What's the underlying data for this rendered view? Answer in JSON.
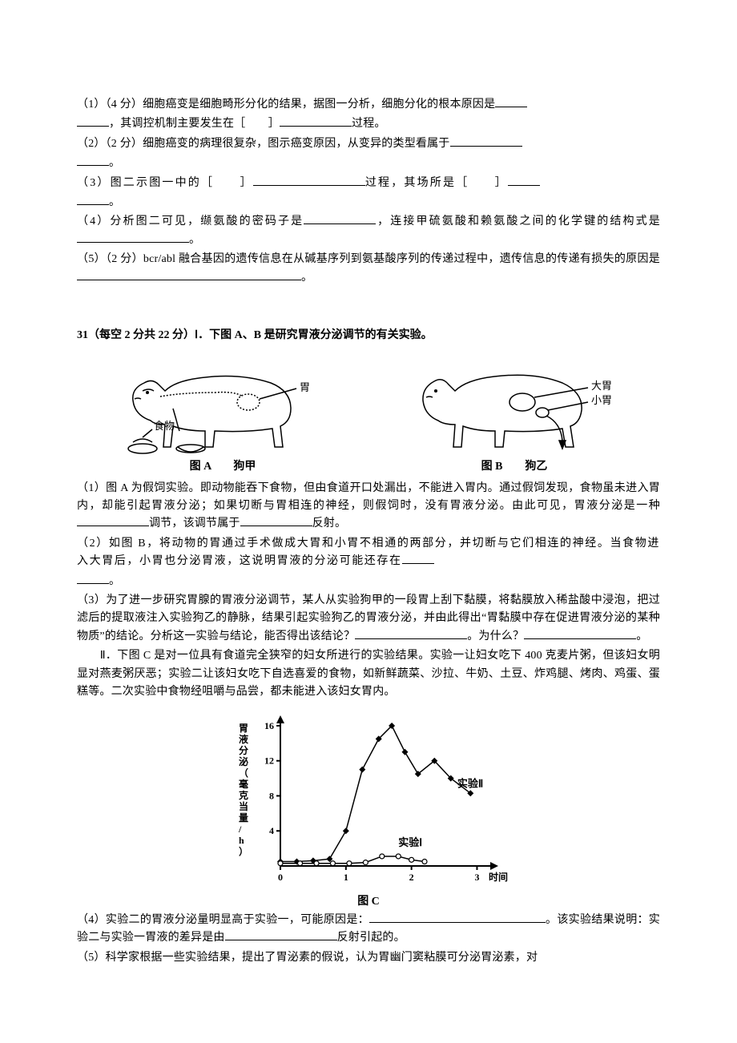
{
  "section1": {
    "q1": "（1）（4 分）细胞癌变是细胞畸形分化的结果，据图一分析，细胞分化的根本原因是",
    "q1b": "，其调控机制主要发生在［　　］",
    "q1c": "过程。",
    "q2": "（2）（2 分）细胞癌变的病理很复杂，图示癌变原因，从变异的类型看属于",
    "q2b": "。",
    "q3a": "（3）图二示图一中的［　　］",
    "q3b": "过程，其场所是［　　］",
    "q3c": "。",
    "q4a": "（4）分析图二可见，缬氨酸的密码子是",
    "q4b": "，连接甲硫氨酸和赖氨酸之间的化学键的结构式是",
    "q4c": "。",
    "q5a": "（5）（2 分）bcr/abl 融合基因的遗传信息在从碱基序列到氨基酸序列的传递过程中，遗传信息的传递有损失的原因是",
    "q5b": "。"
  },
  "q31": {
    "header": "31（每空 2 分共 22 分）Ⅰ．下图 A、B 是研究胃液分泌调节的有关实验。",
    "figA": {
      "labels": {
        "stomach": "胃",
        "food": "食物",
        "caption": "图 A　　狗甲"
      },
      "colors": {
        "line": "#000000"
      }
    },
    "figB": {
      "labels": {
        "big": "大胃",
        "small": "小胃",
        "caption": "图 B　　狗乙"
      },
      "colors": {
        "line": "#000000"
      }
    },
    "q1a": "（1）图 A 为假饲实验。即动物能吞下食物，但由食道开口处漏出，不能进入胃内。通过假饲发现，食物虽未进入胃内，却能引起胃液分泌；如果切断与胃相连的神经，则假饲时，没有胃液分泌。由此可见，胃液分泌是一种",
    "q1b": "调节，该调节属于",
    "q1c": "反射。",
    "q2a": "（2）如图 B，将动物的胃通过手术做成大胃和小胃不相通的两部分，并切断与它们相连的神经。当食物进入大胃后，小胃也分泌胃液，这说明胃液的分泌可能还存在",
    "q2b": "。",
    "q3a": "（3）为了进一步研究胃腺的胃液分泌调节，某人从实验狗甲的一段胃上刮下黏膜，将黏膜放入稀盐酸中浸泡，把过滤后的提取液注入实验狗乙的静脉，结果引起实验狗乙的胃液分泌，并由此得出“胃黏膜中存在促进胃液分泌的某种物质”的结论。分析这一实验与结论，能否得出该结论？",
    "q3b": "。为什么？",
    "q3c": "。",
    "part2": "　　Ⅱ．下图 C 是对一位具有食道完全狭窄的妇女所进行的实验结果。实验一让妇女吃下 400 克麦片粥，但该妇女明显对燕麦粥厌恶；实验二让该妇女吃下自选喜爱的食物，如新鲜蔬菜、沙拉、牛奶、土豆、炸鸡腿、烤肉、鸡蛋、蛋糕等。二次实验中食物经咀嚼与品尝，都未能进入该妇女胃内。",
    "q4a": "（4）实验二的胃液分泌量明显高于实验一，可能原因是：",
    "q4b": "。该实验结果说明：实验二与实验一胃液的差异是由",
    "q4c": "反射引起的。",
    "q5": "（5）科学家根据一些实验结果，提出了胃泌素的假说，认为胃幽门窦粘膜可分泌胃泌素，对"
  },
  "chartC": {
    "type": "line",
    "caption": "图 C",
    "x_label": "时间（h）",
    "y_label": "胃液分泌（毫克当量/h）",
    "xlim": [
      0,
      3.3
    ],
    "ylim": [
      0,
      17
    ],
    "xtick_step": 1,
    "xtick_labels": [
      "0",
      "1",
      "2",
      "3"
    ],
    "ytick_labels": [
      "4",
      "8",
      "12",
      "16"
    ],
    "series": [
      {
        "name": "实验Ⅱ",
        "marker": "diamond",
        "x": [
          0.0,
          0.25,
          0.5,
          0.75,
          1.0,
          1.25,
          1.5,
          1.7,
          1.9,
          2.1,
          2.35,
          2.6,
          2.9
        ],
        "y": [
          0.5,
          0.5,
          0.6,
          0.8,
          4.0,
          11.0,
          14.5,
          16.0,
          13.0,
          10.5,
          12.0,
          10.0,
          8.3
        ]
      },
      {
        "name": "实验Ⅰ",
        "marker": "circle-open",
        "x": [
          0.0,
          0.3,
          0.55,
          0.8,
          1.05,
          1.3,
          1.55,
          1.8,
          2.0,
          2.2
        ],
        "y": [
          0.3,
          0.3,
          0.3,
          0.3,
          0.3,
          0.4,
          1.1,
          1.1,
          0.7,
          0.5
        ]
      }
    ],
    "colors": {
      "axis": "#000000",
      "series": "#000000",
      "background": "#ffffff"
    },
    "axis_linewidth": 2,
    "label_fontsize": 12,
    "label_fontweight": "bold"
  }
}
